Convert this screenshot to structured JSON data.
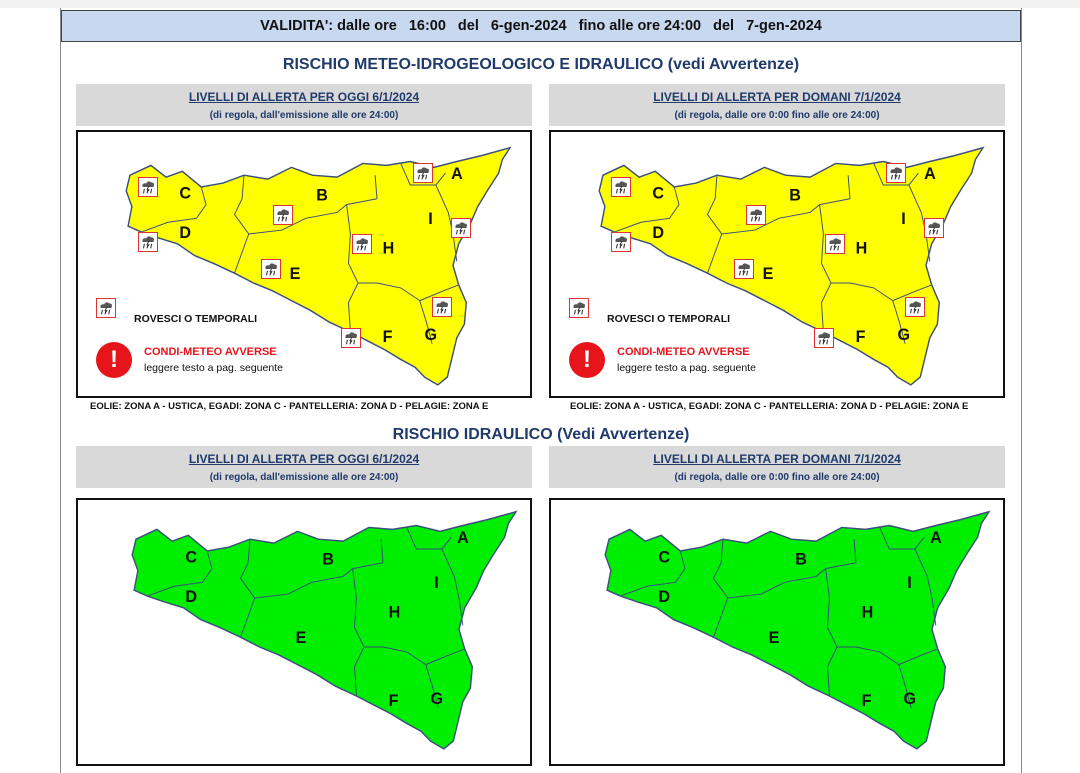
{
  "validity": {
    "label": "VALIDITA': dalle ore",
    "from_time": "16:00",
    "del1": "del",
    "from_date": "6-gen-2024",
    "to_label": "fino alle ore 24:00",
    "del2": "del",
    "to_date": "7-gen-2024"
  },
  "section1": {
    "title": "RISCHIO METEO-IDROGEOLOGICO E IDRAULICO (vedi Avvertenze)",
    "today": {
      "heading": "LIVELLI DI ALLERTA PER OGGI 6/1/2024",
      "sub": "(di regola, dall'emissione alle ore 24:00)"
    },
    "tomorrow": {
      "heading": "LIVELLI DI ALLERTA PER DOMANI 7/1/2024",
      "sub": "(di regola, dalle ore 0:00 fino alle ore 24:00)"
    },
    "legend": {
      "rain": "ROVESCI O TEMPORALI",
      "warn_title": "CONDI-METEO AVVERSE",
      "warn_sub": "leggere testo a pag. seguente",
      "warn_symbol": "!"
    },
    "islands": "EOLIE: ZONA A - USTICA, EGADI: ZONA C - PANTELLERIA: ZONA D - PELAGIE: ZONA E",
    "map_color": "#ffff00"
  },
  "section2": {
    "title": "RISCHIO IDRAULICO (Vedi Avvertenze)",
    "today": {
      "heading": "LIVELLI DI ALLERTA PER OGGI 6/1/2024",
      "sub": "(di regola, dall'emissione alle ore 24:00)"
    },
    "tomorrow": {
      "heading": "LIVELLI DI ALLERTA PER DOMANI 7/1/2024",
      "sub": "(di regola, dalle ore 0:00 fino alle ore 24:00)"
    },
    "map_color": "#00ee00"
  },
  "zones": {
    "a": "A",
    "b": "B",
    "c": "C",
    "d": "D",
    "e": "E",
    "f": "F",
    "g": "G",
    "h": "H",
    "i": "I"
  },
  "icons": {
    "rain": "rain-cloud-icon",
    "warning": "exclamation-icon"
  },
  "colors": {
    "warning": "#e8141c",
    "header_bg": "#c8d8ef",
    "subheader_bg": "#d9d9d9"
  }
}
